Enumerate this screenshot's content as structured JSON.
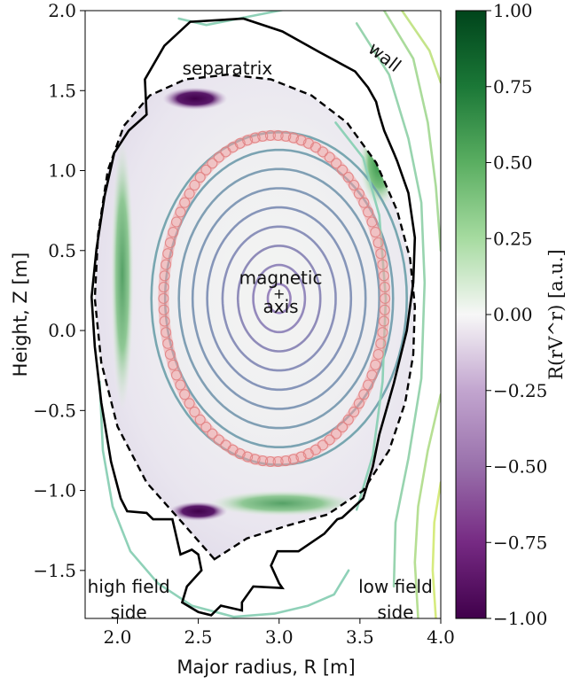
{
  "chart_data": {
    "type": "heatmap",
    "title": "",
    "xlabel": "Major radius, R [m]",
    "ylabel": "Height, Z [m]",
    "xlim": [
      1.8,
      4.0
    ],
    "ylim": [
      -1.8,
      2.0
    ],
    "xticks": [
      2.0,
      2.5,
      3.0,
      3.5,
      4.0
    ],
    "xtick_labels": [
      "2.0",
      "2.5",
      "3.0",
      "3.5",
      "4.0"
    ],
    "yticks": [
      -1.5,
      -1.0,
      -0.5,
      0.0,
      0.5,
      1.0,
      1.5,
      2.0
    ],
    "ytick_labels": [
      "−1.5",
      "−1.0",
      "−0.5",
      "0.0",
      "0.5",
      "1.0",
      "1.5",
      "2.0"
    ],
    "grid": false,
    "colorbar": {
      "label": "R(rV^r) [a.u.]",
      "min": -1.0,
      "max": 1.0,
      "ticks": [
        1.0,
        0.75,
        0.5,
        0.25,
        0.0,
        -0.25,
        -0.5,
        -0.75,
        -1.0
      ],
      "tick_labels": [
        "1.00",
        "0.75",
        "0.50",
        "0.25",
        "0.00",
        "−0.25",
        "−0.50",
        "−0.75",
        "−1.00"
      ],
      "colormap": "PRGn",
      "colors": {
        "min": "#40004b",
        "low": "#9970ab",
        "mid": "#f7f7f7",
        "high": "#5aae61",
        "max": "#00441b"
      }
    },
    "annotations": [
      {
        "text": "separatrix",
        "x": 2.68,
        "y": 1.6
      },
      {
        "text": "wall",
        "x": 3.63,
        "y": 1.68
      },
      {
        "text": "magnetic",
        "x": 3.01,
        "y": 0.29
      },
      {
        "text": "axis",
        "x": 3.01,
        "y": 0.11
      },
      {
        "text": "+",
        "x": 3.0,
        "y": 0.2
      },
      {
        "text": "high field",
        "x": 2.07,
        "y": -1.64
      },
      {
        "text": "side",
        "x": 2.07,
        "y": -1.8
      },
      {
        "text": "low field",
        "x": 3.72,
        "y": -1.64
      },
      {
        "text": "side",
        "x": 3.72,
        "y": -1.8
      }
    ],
    "magnetic_axis": {
      "r": 3.0,
      "z": 0.2
    },
    "separatrix": {
      "r": [
        2.6,
        2.4,
        2.18,
        2.0,
        1.9,
        1.86,
        1.88,
        1.94,
        2.04,
        2.2,
        2.42,
        2.68,
        2.95,
        3.2,
        3.42,
        3.6,
        3.73,
        3.81,
        3.84,
        3.83,
        3.78,
        3.68,
        3.52,
        3.3,
        3.05,
        2.8,
        2.6
      ],
      "z": [
        -1.43,
        -1.2,
        -0.95,
        -0.6,
        -0.2,
        0.2,
        0.6,
        1.0,
        1.28,
        1.47,
        1.57,
        1.6,
        1.57,
        1.47,
        1.3,
        1.05,
        0.75,
        0.45,
        0.15,
        -0.15,
        -0.45,
        -0.75,
        -1.0,
        -1.15,
        -1.22,
        -1.3,
        -1.43
      ]
    },
    "wall": {
      "r": [
        2.17,
        2.18,
        2.07,
        1.98,
        1.92,
        1.87,
        1.84,
        1.86,
        1.9,
        1.96,
        2.02,
        2.06,
        2.18,
        2.22,
        2.34,
        2.39,
        2.46,
        2.5,
        2.52,
        2.43,
        2.4,
        2.5,
        2.58,
        2.61,
        2.64,
        2.77,
        2.77,
        2.84,
        3.02,
        3.0,
        2.95,
        2.99,
        3.12,
        3.28,
        3.36,
        3.39,
        3.52,
        3.58,
        3.62,
        3.71,
        3.79,
        3.83,
        3.84,
        3.8,
        3.73,
        3.71,
        3.65,
        3.62,
        3.6,
        3.55,
        3.47,
        3.25,
        3.02,
        2.78,
        2.45,
        2.29,
        2.17
      ],
      "z": [
        1.57,
        1.35,
        1.25,
        1.11,
        0.84,
        0.51,
        0.21,
        -0.1,
        -0.45,
        -0.82,
        -1.05,
        -1.13,
        -1.14,
        -1.18,
        -1.18,
        -1.4,
        -1.37,
        -1.4,
        -1.5,
        -1.6,
        -1.7,
        -1.76,
        -1.78,
        -1.75,
        -1.72,
        -1.75,
        -1.7,
        -1.6,
        -1.61,
        -1.58,
        -1.47,
        -1.38,
        -1.38,
        -1.27,
        -1.18,
        -1.17,
        -1.05,
        -0.85,
        -0.65,
        -0.33,
        0.0,
        0.3,
        0.58,
        0.86,
        1.06,
        1.11,
        1.25,
        1.35,
        1.43,
        1.52,
        1.62,
        1.74,
        1.87,
        1.95,
        1.93,
        1.78,
        1.57
      ]
    },
    "flux_surfaces_inner": [
      {
        "rx": 0.07,
        "rz": 0.09
      },
      {
        "rx": 0.16,
        "rz": 0.21
      },
      {
        "rx": 0.255,
        "rz": 0.33
      },
      {
        "rx": 0.35,
        "rz": 0.45
      },
      {
        "rx": 0.445,
        "rz": 0.57
      },
      {
        "rx": 0.535,
        "rz": 0.69
      },
      {
        "rx": 0.62,
        "rz": 0.81
      },
      {
        "rx": 0.705,
        "rz": 0.93
      },
      {
        "rx": 0.79,
        "rz": 1.04
      }
    ],
    "flux_surfaces_outer": [
      {
        "r": [
          1.89,
          1.91,
          1.97,
          2.08,
          2.25,
          2.46,
          2.72,
          2.97,
          3.18,
          3.34,
          3.43
        ],
        "z": [
          -0.32,
          -0.75,
          -1.1,
          -1.38,
          -1.58,
          -1.72,
          -1.79,
          -1.77,
          -1.72,
          -1.65,
          -1.5
        ]
      },
      {
        "r": [
          3.35,
          3.52,
          3.62,
          3.66,
          3.64,
          3.58,
          3.48
        ],
        "z": [
          1.3,
          1.08,
          0.72,
          0.2,
          -0.32,
          -0.78,
          -1.12
        ]
      },
      {
        "r": [
          2.38,
          2.55,
          2.85,
          3.1
        ],
        "z": [
          1.95,
          1.91,
          1.97,
          2.02
        ]
      },
      {
        "r": [
          3.48,
          3.68,
          3.8,
          3.88,
          3.9,
          3.88,
          3.8,
          3.72,
          3.71
        ],
        "z": [
          1.92,
          1.6,
          1.2,
          0.8,
          0.3,
          -0.3,
          -0.8,
          -1.2,
          -1.6
        ]
      },
      {
        "r": [
          3.65,
          3.83,
          3.92,
          3.97,
          4.0
        ],
        "z": [
          2.0,
          1.7,
          1.3,
          0.9,
          0.5
        ]
      },
      {
        "r": [
          3.76,
          3.93,
          4.0
        ],
        "z": [
          2.0,
          1.75,
          1.55
        ]
      },
      {
        "r": [
          4.0,
          3.92,
          3.86,
          3.84,
          3.86
        ],
        "z": [
          -0.4,
          -0.75,
          -1.1,
          -1.45,
          -1.8
        ]
      },
      {
        "r": [
          4.0,
          3.96,
          3.95,
          3.97
        ],
        "z": [
          -0.95,
          -1.2,
          -1.5,
          -1.8
        ]
      }
    ],
    "ring": {
      "rx": 0.685,
      "rz": 1.02,
      "center_r": 2.97,
      "center_z": 0.2,
      "color": "#f2a1a0",
      "count": 90
    },
    "hot_spots": [
      {
        "r": 2.48,
        "z": 1.45,
        "rx": 0.2,
        "rz": 0.07,
        "value": -1.0
      },
      {
        "r": 2.5,
        "z": -1.13,
        "rx": 0.18,
        "rz": 0.06,
        "value": -1.0
      },
      {
        "r": 2.03,
        "z": 0.35,
        "rx": 0.07,
        "rz": 0.85,
        "value": 0.6
      },
      {
        "r": 3.62,
        "z": 1.05,
        "rx": 0.12,
        "rz": 0.28,
        "value": 0.8
      },
      {
        "r": 3.02,
        "z": -1.08,
        "rx": 0.45,
        "rz": 0.08,
        "value": 0.6
      }
    ]
  }
}
